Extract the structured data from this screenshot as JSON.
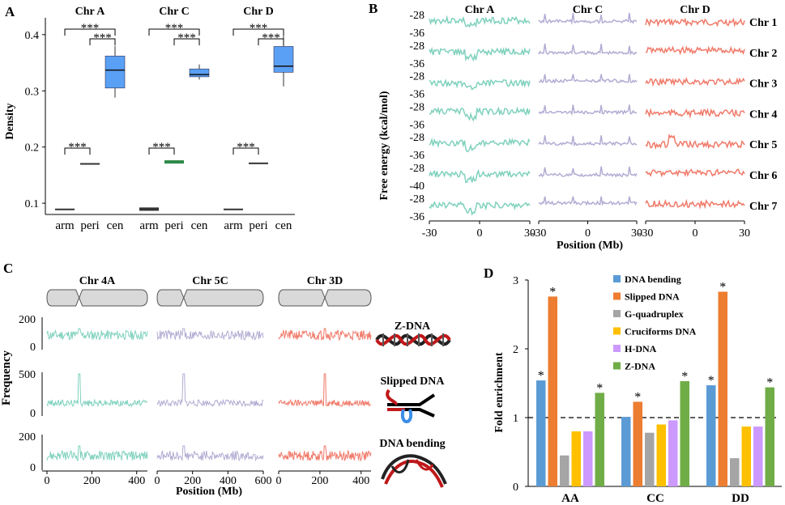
{
  "colors": {
    "A": "#7fd1bd",
    "C": "#b3acd3",
    "D": "#f07a6a",
    "box": "#5aa0f5",
    "green": "#2f8a4a"
  },
  "panelA": {
    "label": "A",
    "ylabel": "Density",
    "yticks": [
      "0.1",
      "0.2",
      "0.3",
      "0.4"
    ],
    "groups": [
      "Chr A",
      "Chr C",
      "Chr D"
    ],
    "categories": [
      "arm",
      "peri",
      "cen"
    ],
    "sig": "***"
  },
  "panelB": {
    "label": "B",
    "ylabel": "Free energy (kcal/mol)",
    "xlabel": "Position (Mb)",
    "groups": [
      "Chr A",
      "Chr C",
      "Chr D"
    ],
    "rows": [
      "Chr 1",
      "Chr 2",
      "Chr 3",
      "Chr 4",
      "Chr 5",
      "Chr 6",
      "Chr 7"
    ],
    "yticks": [
      [
        "-28",
        "-36"
      ],
      [
        "-28",
        "-36"
      ],
      [
        "-28",
        "-36"
      ],
      [
        "-28",
        "-36"
      ],
      [
        "-28",
        "-36"
      ],
      [
        "-28",
        "-40"
      ],
      [
        "-28",
        "-36"
      ]
    ],
    "xticks": [
      [
        "-30",
        "0",
        "30"
      ],
      [
        "-30",
        "0",
        "30"
      ],
      [
        "-30",
        "0",
        "30"
      ]
    ]
  },
  "panelC": {
    "label": "C",
    "ylabel": "Frequency",
    "xlabel": "Position (Mb)",
    "chromosomes": [
      "Chr 4A",
      "Chr 5C",
      "Chr 3D"
    ],
    "rows": [
      {
        "name": "Z-DNA",
        "yticks": [
          "200",
          "0"
        ]
      },
      {
        "name": "Slipped DNA",
        "yticks": [
          "500",
          "0"
        ]
      },
      {
        "name": "DNA bending",
        "yticks": [
          "200",
          "0"
        ]
      }
    ],
    "xticks": [
      [
        "0",
        "200",
        "400"
      ],
      [
        "0",
        "200",
        "400",
        "600"
      ],
      [
        "0",
        "200",
        "400"
      ]
    ]
  },
  "chart_data": [
    {
      "type": "box",
      "ylabel": "Density",
      "ylim": [
        0.08,
        0.43
      ],
      "groups": [
        "Chr A",
        "Chr C",
        "Chr D"
      ],
      "categories": [
        "arm",
        "peri",
        "cen"
      ],
      "boxes": {
        "Chr A": [
          {
            "cat": "arm",
            "min": 0.089,
            "q1": 0.089,
            "median": 0.089,
            "q3": 0.089,
            "max": 0.089
          },
          {
            "cat": "peri",
            "min": 0.17,
            "q1": 0.17,
            "median": 0.17,
            "q3": 0.17,
            "max": 0.17
          },
          {
            "cat": "cen",
            "min": 0.288,
            "q1": 0.305,
            "median": 0.337,
            "q3": 0.362,
            "max": 0.38
          }
        ],
        "Chr C": [
          {
            "cat": "arm",
            "min": 0.088,
            "q1": 0.088,
            "median": 0.09,
            "q3": 0.091,
            "max": 0.091
          },
          {
            "cat": "peri",
            "min": 0.172,
            "q1": 0.172,
            "median": 0.173,
            "q3": 0.175,
            "max": 0.175
          },
          {
            "cat": "cen",
            "min": 0.32,
            "q1": 0.325,
            "median": 0.329,
            "q3": 0.339,
            "max": 0.347
          }
        ],
        "Chr D": [
          {
            "cat": "arm",
            "min": 0.089,
            "q1": 0.089,
            "median": 0.089,
            "q3": 0.089,
            "max": 0.089
          },
          {
            "cat": "peri",
            "min": 0.171,
            "q1": 0.171,
            "median": 0.171,
            "q3": 0.171,
            "max": 0.171
          },
          {
            "cat": "cen",
            "min": 0.308,
            "q1": 0.333,
            "median": 0.344,
            "q3": 0.379,
            "max": 0.404
          }
        ]
      },
      "annotations": [
        "***"
      ]
    },
    {
      "type": "bar",
      "ylabel": "Fold enrichment",
      "ylim": [
        0,
        3
      ],
      "yticks": [
        "0",
        "1",
        "2",
        "3"
      ],
      "reference_line": 1,
      "categories": [
        "AA",
        "CC",
        "DD"
      ],
      "series": [
        {
          "name": "DNA bending",
          "color": "#5b9bd5",
          "values": [
            1.54,
            1.01,
            1.47
          ],
          "sig": [
            true,
            false,
            true
          ]
        },
        {
          "name": "Slipped DNA",
          "color": "#ed7d31",
          "values": [
            2.76,
            1.23,
            2.83
          ],
          "sig": [
            true,
            true,
            true
          ]
        },
        {
          "name": "G-quadruplex",
          "color": "#a5a5a5",
          "values": [
            0.45,
            0.78,
            0.41
          ],
          "sig": [
            false,
            false,
            false
          ]
        },
        {
          "name": "Cruciforms DNA",
          "color": "#ffc000",
          "values": [
            0.8,
            0.9,
            0.87
          ],
          "sig": [
            false,
            false,
            false
          ]
        },
        {
          "name": "H-DNA",
          "color": "#cc99ff",
          "values": [
            0.8,
            0.96,
            0.87
          ],
          "sig": [
            false,
            false,
            false
          ]
        },
        {
          "name": "Z-DNA",
          "color": "#70ad47",
          "values": [
            1.36,
            1.53,
            1.44
          ],
          "sig": [
            true,
            true,
            true
          ]
        }
      ],
      "sig_marker": "*",
      "legend": "inside-top-right",
      "label": "D"
    }
  ]
}
